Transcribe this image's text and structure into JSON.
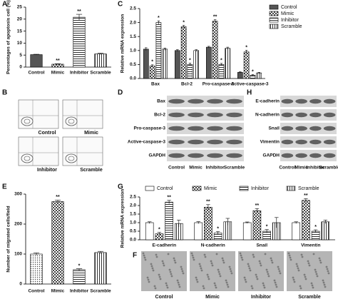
{
  "chart_data": [
    {
      "type": "bar",
      "panel_label": "A",
      "y_label": "Percentages of apoptosis cell (%)",
      "categories": [
        "Control",
        "Mimic",
        "Inhibitor",
        "Scramble"
      ],
      "values": [
        5.2,
        1.2,
        20.8,
        5.5
      ],
      "errors": [
        0.15,
        0.2,
        1.2,
        0.3
      ],
      "significance": [
        null,
        "**",
        "**",
        null
      ],
      "colors": [
        "#555555",
        "#444444",
        "#333333",
        "#333333"
      ],
      "patterns": [
        "solid",
        "checker",
        "hlines",
        "vlines"
      ],
      "ylim": [
        0,
        25
      ],
      "yticks": [
        0,
        5,
        10,
        15,
        20,
        25
      ]
    },
    {
      "type": "bar",
      "panel_label": "C",
      "y_label": "Relative mRNA expression",
      "categories": [
        "Bax",
        "Bcl-2",
        "Pro-caspase-3",
        "Active-caspase-3"
      ],
      "series": [
        {
          "name": "Control",
          "color": "#555555",
          "pattern": "solid",
          "values": [
            1.05,
            1.0,
            1.12,
            0.22
          ],
          "errors": [
            0.05,
            0.03,
            0.03,
            0.02
          ],
          "significance": [
            null,
            null,
            null,
            null
          ]
        },
        {
          "name": "Mimic",
          "color": "#444444",
          "pattern": "checker",
          "values": [
            0.45,
            1.85,
            2.05,
            0.95
          ],
          "errors": [
            0.04,
            0.05,
            0.05,
            0.06
          ],
          "significance": [
            "*",
            "*",
            "**",
            "*"
          ]
        },
        {
          "name": "Inhibitor",
          "color": "#333333",
          "pattern": "hlines",
          "values": [
            2.0,
            0.5,
            0.5,
            0.12
          ],
          "errors": [
            0.06,
            0.05,
            0.04,
            0.02
          ],
          "significance": [
            "*",
            "*",
            "*",
            "*"
          ]
        },
        {
          "name": "Scramble",
          "color": "#333333",
          "pattern": "vlines",
          "values": [
            1.05,
            1.0,
            1.08,
            0.2
          ],
          "errors": [
            0.04,
            0.03,
            0.04,
            0.02
          ],
          "significance": [
            null,
            null,
            null,
            null
          ]
        }
      ],
      "ylim": [
        0,
        2.5
      ],
      "yticks": [
        {
          "value": 0,
          "label": "0.0"
        },
        0.5,
        {
          "value": 1,
          "label": "1.0"
        },
        1.5,
        {
          "value": 2,
          "label": "2.0"
        },
        2.5
      ],
      "legend": "right"
    },
    {
      "type": "bar",
      "panel_label": "E",
      "y_label": "Number of migrated cells/field",
      "categories": [
        "Control",
        "Mimic",
        "Inhibitor",
        "Scramble"
      ],
      "values": [
        100,
        275,
        48,
        105
      ],
      "errors": [
        4,
        5,
        3,
        4
      ],
      "significance": [
        null,
        "**",
        "*",
        null
      ],
      "colors": [
        "#444444",
        "#444444",
        "#333333",
        "#333333"
      ],
      "patterns": [
        "dots",
        "checker",
        "hlines",
        "vlines"
      ],
      "ylim": [
        0,
        300
      ],
      "yticks": [
        0,
        100,
        200,
        300
      ]
    },
    {
      "type": "bar",
      "panel_label": "G",
      "y_label": "Relative mRNA expression",
      "categories": [
        "E-cadherin",
        "N-cadherin",
        "Snail",
        "Vimentin"
      ],
      "series": [
        {
          "name": "Control",
          "color": "#ffffff",
          "pattern": "solid",
          "values": [
            1.0,
            1.0,
            1.0,
            1.0
          ],
          "errors": [
            0.05,
            0.06,
            0.04,
            0.05
          ],
          "significance": [
            null,
            null,
            null,
            null
          ]
        },
        {
          "name": "Mimic",
          "color": "#444444",
          "pattern": "checker",
          "values": [
            0.35,
            1.9,
            1.7,
            2.3
          ],
          "errors": [
            0.08,
            0.15,
            0.12,
            0.1
          ],
          "significance": [
            "*",
            "**",
            "**",
            "**"
          ]
        },
        {
          "name": "Inhibitor",
          "color": "#333333",
          "pattern": "hlines",
          "values": [
            2.2,
            0.4,
            0.5,
            0.5
          ],
          "errors": [
            0.1,
            0.08,
            0.1,
            0.08
          ],
          "significance": [
            "**",
            "*",
            "*",
            "*"
          ]
        },
        {
          "name": "Scramble",
          "color": "#333333",
          "pattern": "vlines",
          "values": [
            0.95,
            1.05,
            1.0,
            1.05
          ],
          "errors": [
            0.2,
            0.2,
            0.3,
            0.1
          ],
          "significance": [
            null,
            null,
            null,
            null
          ]
        }
      ],
      "ylim": [
        0,
        2.5
      ],
      "yticks": [
        {
          "value": 0,
          "label": "0.0"
        },
        0.5,
        {
          "value": 1,
          "label": "1.0"
        },
        1.5,
        {
          "value": 2,
          "label": "2.0"
        },
        2.5
      ],
      "legend": "top"
    }
  ],
  "panels": {
    "B": {
      "label": "B",
      "plots": [
        "Control",
        "Mimic",
        "Inhibitor",
        "Scramble"
      ]
    },
    "D": {
      "label": "D",
      "rows": [
        "Bax",
        "Bcl-2",
        "Pro-caspase-3",
        "Active-caspase-3",
        "GAPDH"
      ],
      "lanes": [
        "Control",
        "Mimic",
        "Inhibitor",
        "Scramble"
      ]
    },
    "H": {
      "label": "H",
      "rows": [
        "E-cadherin",
        "N-cadherin",
        "Snail",
        "Vimentin",
        "GAPDH"
      ],
      "lanes": [
        "Control",
        "Mimic",
        "Inhibitor",
        "Scramble"
      ]
    },
    "F": {
      "label": "F",
      "images": [
        "Control",
        "Mimic",
        "Inhibitor",
        "Scramble"
      ]
    }
  }
}
